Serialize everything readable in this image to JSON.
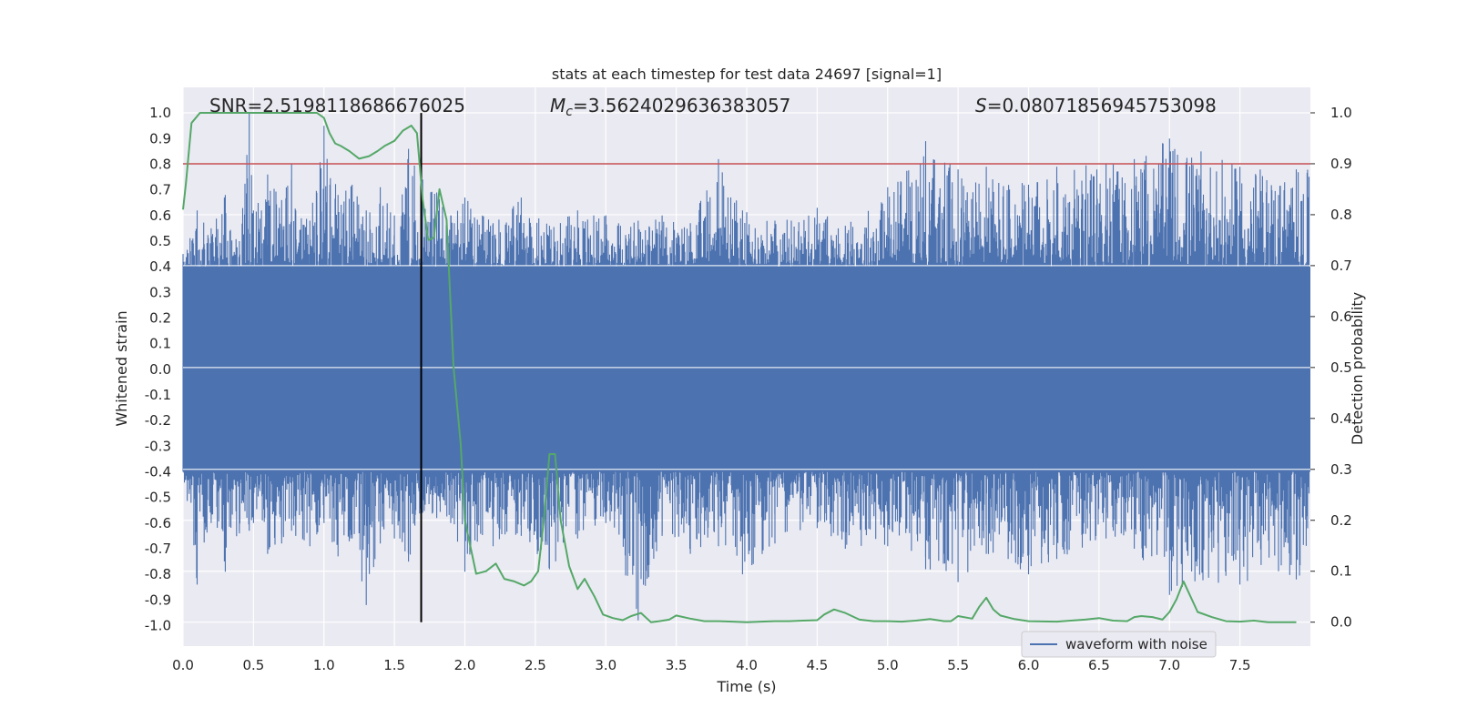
{
  "chart_data": {
    "type": "line",
    "title": "stats at each timestep for test data 24697 [signal=1]",
    "xlabel": "Time (s)",
    "ylabel": "Whitened strain",
    "ylabel_right": "Detection probability",
    "xlim": [
      0.0,
      8.0
    ],
    "ylim": [
      -1.08,
      1.1
    ],
    "ylim_right": [
      -0.047,
      1.05
    ],
    "x_ticks": [
      "0.0",
      "0.5",
      "1.0",
      "1.5",
      "2.0",
      "2.5",
      "3.0",
      "3.5",
      "4.0",
      "4.5",
      "5.0",
      "5.5",
      "6.0",
      "6.5",
      "7.0",
      "7.5"
    ],
    "y_ticks": [
      "1.0",
      "0.9",
      "0.8",
      "0.7",
      "0.6",
      "0.5",
      "0.4",
      "0.3",
      "0.2",
      "0.1",
      "0.0",
      "-0.1",
      "-0.2",
      "-0.3",
      "-0.4",
      "-0.5",
      "-0.6",
      "-0.7",
      "-0.8",
      "-0.9",
      "-1.0"
    ],
    "y_ticks_right": [
      "1.0",
      "0.9",
      "0.8",
      "0.7",
      "0.6",
      "0.5",
      "0.4",
      "0.3",
      "0.2",
      "0.1",
      "0.0"
    ],
    "annotations": {
      "snr": "SNR=2.5198118686676025",
      "mc_symbol": "M",
      "mc_subscript": "c",
      "mc_value": "=3.5624029636383057",
      "s_symbol": "S",
      "s_value": "=0.08071856945753098"
    },
    "threshold_right": 0.9,
    "marker_time": 1.69,
    "legend": [
      {
        "label": "waveform with noise",
        "color": "#4c72b0"
      }
    ],
    "waveform": {
      "name": "waveform with noise",
      "color": "#4c72b0",
      "envelope_times": [
        0.0,
        0.1,
        0.2,
        0.3,
        0.4,
        0.47,
        0.5,
        0.6,
        0.7,
        0.77,
        0.8,
        0.9,
        1.0,
        1.1,
        1.2,
        1.3,
        1.4,
        1.5,
        1.6,
        1.7,
        1.8,
        1.9,
        2.0,
        2.2,
        2.4,
        2.6,
        2.8,
        3.0,
        3.23,
        3.4,
        3.6,
        3.8,
        3.97,
        4.2,
        4.5,
        4.7,
        5.0,
        5.27,
        5.5,
        5.7,
        6.0,
        6.2,
        6.55,
        6.75,
        7.0,
        7.5,
        7.9
      ],
      "envelope_max": [
        0.45,
        0.62,
        0.55,
        0.68,
        0.5,
        1.0,
        0.62,
        0.76,
        0.66,
        0.8,
        0.62,
        0.58,
        0.95,
        0.68,
        0.72,
        0.62,
        0.71,
        0.6,
        0.86,
        0.74,
        0.69,
        0.6,
        0.67,
        0.57,
        0.67,
        0.56,
        0.62,
        0.6,
        0.58,
        0.6,
        0.57,
        0.82,
        0.62,
        0.58,
        0.63,
        0.56,
        0.71,
        0.89,
        0.78,
        0.79,
        0.72,
        0.79,
        0.8,
        0.82,
        0.9,
        0.79,
        0.78
      ],
      "envelope_min": [
        -0.4,
        -0.84,
        -0.6,
        -0.79,
        -0.64,
        -0.63,
        -0.6,
        -0.72,
        -0.68,
        -0.63,
        -0.65,
        -0.69,
        -0.6,
        -0.73,
        -0.66,
        -0.92,
        -0.68,
        -0.66,
        -0.75,
        -0.56,
        -0.58,
        -0.6,
        -0.79,
        -0.69,
        -0.65,
        -0.78,
        -0.66,
        -0.6,
        -0.98,
        -0.65,
        -0.72,
        -0.69,
        -0.8,
        -0.68,
        -0.62,
        -0.7,
        -0.69,
        -0.78,
        -0.83,
        -0.72,
        -0.8,
        -0.74,
        -0.66,
        -0.7,
        -0.88,
        -0.84,
        -0.82
      ],
      "baseline": 0.4
    },
    "probability": {
      "name": "detection probability",
      "color": "#55a868",
      "x": [
        0.0,
        0.02,
        0.06,
        0.12,
        0.2,
        0.3,
        0.4,
        0.5,
        0.6,
        0.7,
        0.8,
        0.9,
        0.95,
        1.0,
        1.04,
        1.08,
        1.12,
        1.18,
        1.25,
        1.32,
        1.38,
        1.43,
        1.5,
        1.56,
        1.62,
        1.66,
        1.7,
        1.74,
        1.78,
        1.82,
        1.87,
        1.92,
        1.97,
        2.0,
        2.08,
        2.15,
        2.22,
        2.28,
        2.35,
        2.42,
        2.47,
        2.52,
        2.56,
        2.6,
        2.64,
        2.68,
        2.74,
        2.8,
        2.85,
        2.92,
        2.98,
        3.05,
        3.12,
        3.18,
        3.25,
        3.32,
        3.38,
        3.45,
        3.5,
        3.6,
        3.7,
        3.8,
        3.9,
        4.0,
        4.1,
        4.2,
        4.3,
        4.4,
        4.5,
        4.55,
        4.62,
        4.7,
        4.8,
        4.9,
        5.0,
        5.1,
        5.2,
        5.3,
        5.4,
        5.45,
        5.5,
        5.6,
        5.65,
        5.7,
        5.75,
        5.8,
        5.9,
        6.0,
        6.2,
        6.3,
        6.4,
        6.5,
        6.6,
        6.7,
        6.75,
        6.8,
        6.88,
        6.95,
        7.0,
        7.05,
        7.1,
        7.2,
        7.3,
        7.4,
        7.5,
        7.6,
        7.7,
        7.8,
        7.9
      ],
      "y": [
        0.81,
        0.86,
        0.98,
        1.0,
        1.0,
        1.0,
        1.0,
        1.0,
        1.0,
        1.0,
        1.0,
        1.0,
        1.0,
        0.99,
        0.96,
        0.94,
        0.935,
        0.925,
        0.91,
        0.915,
        0.925,
        0.935,
        0.945,
        0.965,
        0.975,
        0.96,
        0.83,
        0.75,
        0.755,
        0.85,
        0.79,
        0.5,
        0.35,
        0.2,
        0.095,
        0.1,
        0.115,
        0.085,
        0.08,
        0.072,
        0.08,
        0.1,
        0.2,
        0.33,
        0.33,
        0.2,
        0.11,
        0.065,
        0.085,
        0.05,
        0.015,
        0.008,
        0.004,
        0.012,
        0.018,
        0.0,
        0.002,
        0.005,
        0.013,
        0.007,
        0.002,
        0.002,
        0.001,
        0.0,
        0.001,
        0.002,
        0.002,
        0.003,
        0.004,
        0.015,
        0.025,
        0.018,
        0.005,
        0.002,
        0.002,
        0.001,
        0.003,
        0.006,
        0.002,
        0.002,
        0.012,
        0.007,
        0.03,
        0.048,
        0.025,
        0.013,
        0.006,
        0.002,
        0.001,
        0.003,
        0.005,
        0.008,
        0.003,
        0.002,
        0.01,
        0.012,
        0.01,
        0.005,
        0.02,
        0.045,
        0.08,
        0.02,
        0.01,
        0.002,
        0.001,
        0.003,
        0.0,
        0.0,
        0.0
      ]
    }
  }
}
